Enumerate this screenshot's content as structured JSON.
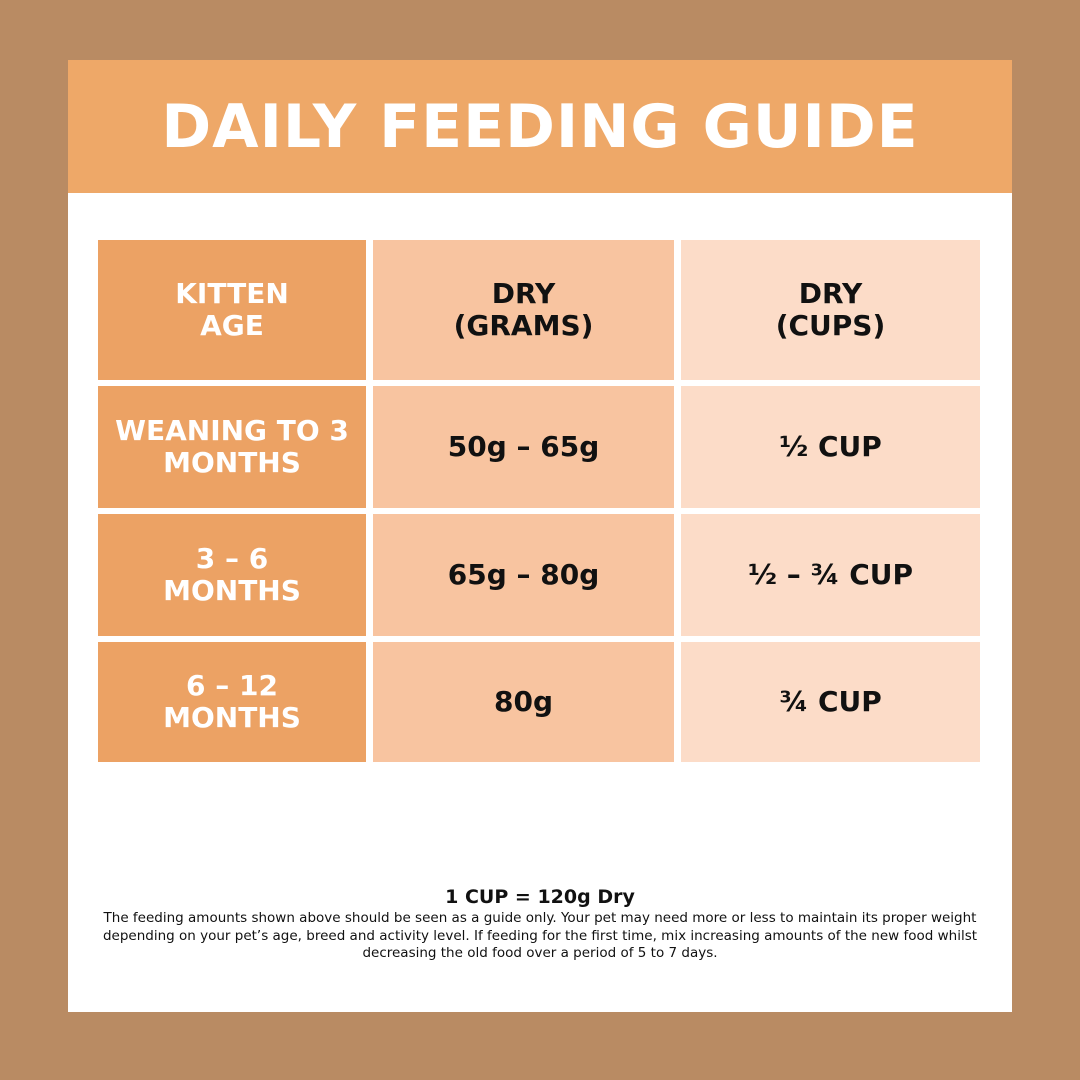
{
  "title": "DAILY FEEDING GUIDE",
  "colors": {
    "background": "#b98b63",
    "header": "#eea868",
    "age_column": "#eca264",
    "grams_column": "#f8c4a0",
    "cups_column": "#fcdcc8"
  },
  "table": {
    "headers": [
      "KITTEN AGE",
      "DRY (GRAMS)",
      "DRY (CUPS)"
    ],
    "rows": [
      [
        "WEANING TO 3 MONTHS",
        "50g – 65g",
        "½ CUP"
      ],
      [
        "3 – 6 MONTHS",
        "65g – 80g",
        "½ – ¾ CUP"
      ],
      [
        "6 – 12 MONTHS",
        "80g",
        "¾ CUP"
      ]
    ]
  },
  "footer": {
    "conversion": "1 CUP = 120g Dry",
    "note": "The feeding amounts shown above should be seen as a guide only. Your pet may need more or less to maintain its proper weight depending on your pet’s age, breed and activity level. If feeding for the first time, mix increasing amounts of the new food whilst decreasing the old food over a period of 5 to 7 days."
  }
}
